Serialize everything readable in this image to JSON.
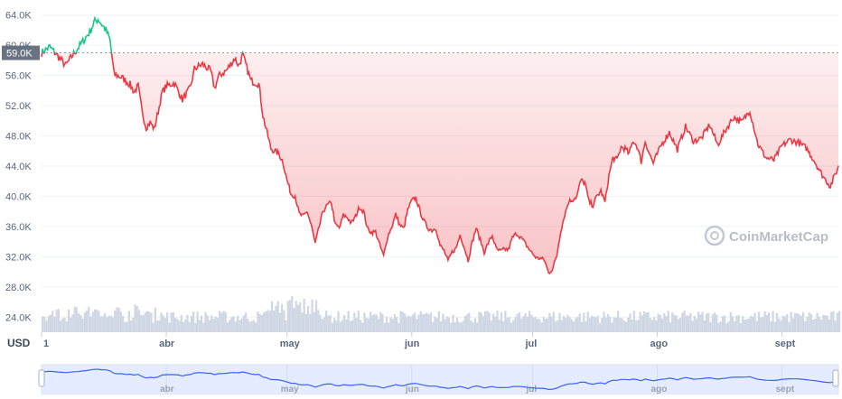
{
  "chart_data": {
    "type": "line",
    "currency": "USD",
    "watermark": "CoinMarketCap",
    "current_price_label": "59.0K",
    "current_price": 59000,
    "ylim": [
      22000,
      66000
    ],
    "y_ticks": [
      {
        "label": "64.0K",
        "value": 64000
      },
      {
        "label": "60.0K",
        "value": 60000
      },
      {
        "label": "56.0K",
        "value": 56000
      },
      {
        "label": "52.0K",
        "value": 52000
      },
      {
        "label": "48.0K",
        "value": 48000
      },
      {
        "label": "44.0K",
        "value": 44000
      },
      {
        "label": "40.0K",
        "value": 40000
      },
      {
        "label": "36.0K",
        "value": 36000
      },
      {
        "label": "32.0K",
        "value": 32000
      },
      {
        "label": "28.0K",
        "value": 28000
      },
      {
        "label": "24.0K",
        "value": 24000
      }
    ],
    "x_ticks": [
      {
        "label": "1",
        "day": 0
      },
      {
        "label": "abr",
        "day": 31
      },
      {
        "label": "may",
        "day": 61
      },
      {
        "label": "jun",
        "day": 92
      },
      {
        "label": "jul",
        "day": 122
      },
      {
        "label": "ago",
        "day": 153
      },
      {
        "label": "sept",
        "day": 184
      }
    ],
    "x_range_days": [
      0,
      198
    ],
    "colors": {
      "above": "#16c784",
      "below": "#ea3943",
      "volume": "#cfd6e4",
      "navigator_line": "#3861fb",
      "navigator_fill": "#e6ecff",
      "grid": "#eff2f5",
      "current_label_bg": "#6b7280"
    },
    "price_series": [
      [
        0,
        59000
      ],
      [
        2,
        59800
      ],
      [
        4,
        58600
      ],
      [
        6,
        57300
      ],
      [
        8,
        58900
      ],
      [
        10,
        60300
      ],
      [
        12,
        61800
      ],
      [
        13,
        63000
      ],
      [
        14,
        63500
      ],
      [
        16,
        62000
      ],
      [
        17,
        60700
      ],
      [
        18,
        56200
      ],
      [
        20,
        55700
      ],
      [
        22,
        54800
      ],
      [
        23,
        53800
      ],
      [
        24,
        54600
      ],
      [
        25,
        51100
      ],
      [
        26,
        49100
      ],
      [
        27,
        49800
      ],
      [
        28,
        48900
      ],
      [
        29,
        51300
      ],
      [
        30,
        53800
      ],
      [
        31,
        54600
      ],
      [
        33,
        55000
      ],
      [
        35,
        52800
      ],
      [
        37,
        54400
      ],
      [
        38,
        56900
      ],
      [
        40,
        57500
      ],
      [
        42,
        56600
      ],
      [
        43,
        54300
      ],
      [
        44,
        55900
      ],
      [
        46,
        56700
      ],
      [
        48,
        58300
      ],
      [
        49,
        57300
      ],
      [
        50,
        58700
      ],
      [
        52,
        55300
      ],
      [
        54,
        54900
      ],
      [
        55,
        50700
      ],
      [
        57,
        46300
      ],
      [
        59,
        45600
      ],
      [
        60,
        44500
      ],
      [
        61,
        42100
      ],
      [
        62,
        40300
      ],
      [
        63,
        40100
      ],
      [
        64,
        37700
      ],
      [
        65,
        37300
      ],
      [
        66,
        38000
      ],
      [
        67,
        36200
      ],
      [
        68,
        33700
      ],
      [
        69,
        36000
      ],
      [
        70,
        38100
      ],
      [
        71,
        38800
      ],
      [
        72,
        39200
      ],
      [
        73,
        36200
      ],
      [
        74,
        35800
      ],
      [
        75,
        37500
      ],
      [
        76,
        37200
      ],
      [
        77,
        36400
      ],
      [
        78,
        37300
      ],
      [
        79,
        38600
      ],
      [
        80,
        38000
      ],
      [
        81,
        35700
      ],
      [
        82,
        35200
      ],
      [
        83,
        35300
      ],
      [
        84,
        33600
      ],
      [
        85,
        32100
      ],
      [
        86,
        34700
      ],
      [
        87,
        35900
      ],
      [
        88,
        37600
      ],
      [
        89,
        36200
      ],
      [
        90,
        35700
      ],
      [
        91,
        38200
      ],
      [
        92,
        39400
      ],
      [
        93,
        39800
      ],
      [
        94,
        38100
      ],
      [
        95,
        36700
      ],
      [
        96,
        35800
      ],
      [
        97,
        35500
      ],
      [
        98,
        35800
      ],
      [
        99,
        33500
      ],
      [
        100,
        32800
      ],
      [
        101,
        31400
      ],
      [
        102,
        32600
      ],
      [
        103,
        33100
      ],
      [
        104,
        34900
      ],
      [
        105,
        33300
      ],
      [
        106,
        31500
      ],
      [
        107,
        33900
      ],
      [
        108,
        35800
      ],
      [
        109,
        34200
      ],
      [
        110,
        32600
      ],
      [
        111,
        33800
      ],
      [
        112,
        34800
      ],
      [
        113,
        33000
      ],
      [
        114,
        32700
      ],
      [
        115,
        33000
      ],
      [
        116,
        32900
      ],
      [
        117,
        34500
      ],
      [
        118,
        35100
      ],
      [
        119,
        34600
      ],
      [
        120,
        33900
      ],
      [
        121,
        33100
      ],
      [
        122,
        32400
      ],
      [
        123,
        31800
      ],
      [
        124,
        31800
      ],
      [
        125,
        31500
      ],
      [
        126,
        29800
      ],
      [
        127,
        30400
      ],
      [
        128,
        32100
      ],
      [
        129,
        35400
      ],
      [
        130,
        37600
      ],
      [
        131,
        39300
      ],
      [
        132,
        39600
      ],
      [
        133,
        40000
      ],
      [
        134,
        42100
      ],
      [
        135,
        41800
      ],
      [
        136,
        39300
      ],
      [
        137,
        38800
      ],
      [
        138,
        40000
      ],
      [
        139,
        40700
      ],
      [
        140,
        39200
      ],
      [
        141,
        42800
      ],
      [
        142,
        45100
      ],
      [
        143,
        44800
      ],
      [
        144,
        46500
      ],
      [
        145,
        46300
      ],
      [
        146,
        45600
      ],
      [
        147,
        47400
      ],
      [
        148,
        46600
      ],
      [
        149,
        44600
      ],
      [
        150,
        47300
      ],
      [
        151,
        45700
      ],
      [
        152,
        44400
      ],
      [
        154,
        46800
      ],
      [
        156,
        48500
      ],
      [
        158,
        46200
      ],
      [
        160,
        49200
      ],
      [
        162,
        47300
      ],
      [
        164,
        47700
      ],
      [
        166,
        49500
      ],
      [
        168,
        46800
      ],
      [
        170,
        48800
      ],
      [
        172,
        50500
      ],
      [
        174,
        49800
      ],
      [
        176,
        51400
      ],
      [
        178,
        46900
      ],
      [
        180,
        45100
      ],
      [
        182,
        44800
      ],
      [
        184,
        46700
      ],
      [
        186,
        47500
      ],
      [
        188,
        47100
      ],
      [
        190,
        46400
      ],
      [
        192,
        44700
      ],
      [
        194,
        42800
      ],
      [
        196,
        41300
      ],
      [
        198,
        43900
      ]
    ],
    "volume_note": "volume bars shown in the lower band without a printed scale"
  }
}
